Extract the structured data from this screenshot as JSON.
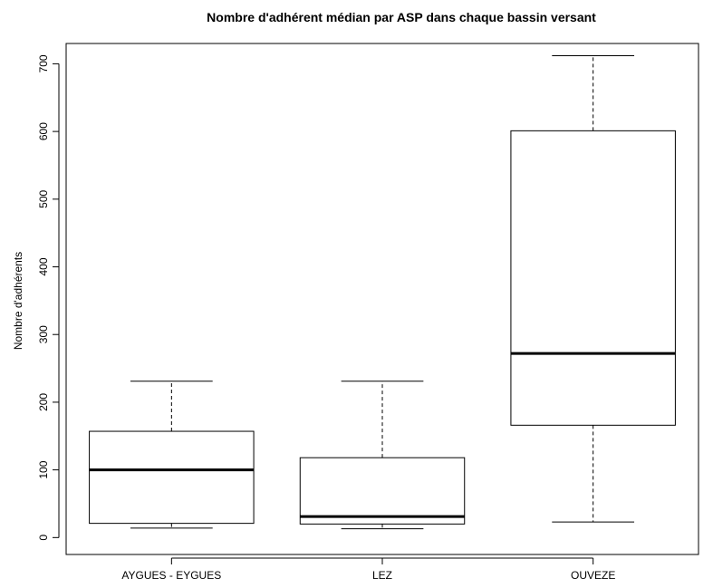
{
  "chart_data": {
    "type": "boxplot",
    "title": "Nombre d'adhérent médian par ASP dans chaque bassin versant",
    "xlabel": "",
    "ylabel": "Nombre d'adhérents",
    "ylim": [
      -25,
      730
    ],
    "yticks": [
      0,
      100,
      200,
      300,
      400,
      500,
      600,
      700
    ],
    "grid": false,
    "legend": "none",
    "categories": [
      "AYGUES - EYGUES",
      "LEZ",
      "OUVEZE"
    ],
    "boxes": [
      {
        "category": "AYGUES - EYGUES",
        "min": 14,
        "q1": 21,
        "median": 100,
        "q3": 157,
        "max": 231
      },
      {
        "category": "LEZ",
        "min": 13,
        "q1": 20,
        "median": 31,
        "q3": 118,
        "max": 231
      },
      {
        "category": "OUVEZE",
        "min": 23,
        "q1": 166,
        "median": 272,
        "q3": 601,
        "max": 712
      }
    ],
    "colors": {
      "box_fill": "#ffffff",
      "stroke": "#000000"
    }
  }
}
